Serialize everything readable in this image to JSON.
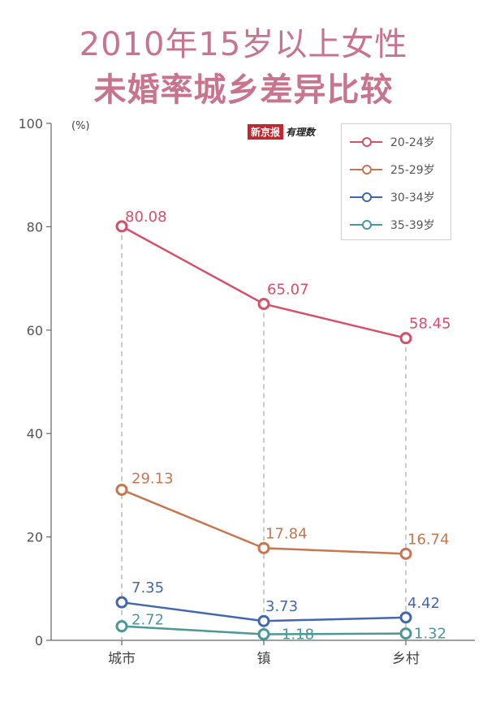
{
  "title_line1": "2010年15岁以上女性",
  "title_line2": "未婚率城乡差异比较",
  "logo": {
    "red_text": "新京报",
    "hand_text": "有理数"
  },
  "chart_data": {
    "type": "line",
    "title": "2010年15岁以上女性未婚率城乡差异比较",
    "ylabel": "(%)",
    "xlabel": "",
    "categories": [
      "城市",
      "镇",
      "乡村"
    ],
    "ylim": [
      0,
      100
    ],
    "yticks": [
      0,
      20,
      40,
      60,
      80,
      100
    ],
    "series": [
      {
        "name": "20-24岁",
        "color": "#d6506a",
        "values": [
          80.08,
          65.07,
          58.45
        ],
        "labels": [
          "80.08",
          "65.07",
          "58.45"
        ]
      },
      {
        "name": "25-29岁",
        "color": "#c87650",
        "values": [
          29.13,
          17.84,
          16.74
        ],
        "labels": [
          "29.13",
          "17.84",
          "16.74"
        ]
      },
      {
        "name": "30-34岁",
        "color": "#4566b0",
        "values": [
          7.35,
          3.73,
          4.42
        ],
        "labels": [
          "7.35",
          "3.73",
          "4.42"
        ]
      },
      {
        "name": "35-39岁",
        "color": "#4c9797",
        "values": [
          2.72,
          1.18,
          1.32
        ],
        "labels": [
          "2.72",
          "1.18",
          "1.32"
        ]
      }
    ],
    "grid": false,
    "legend_position": "top-right"
  }
}
